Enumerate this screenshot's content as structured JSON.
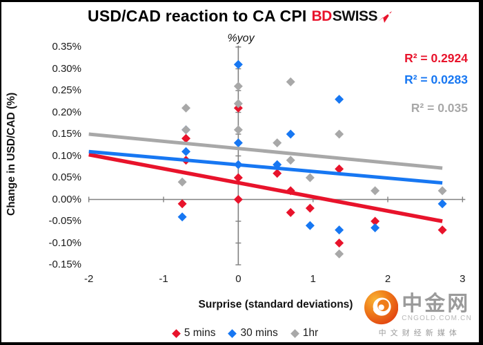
{
  "header": {
    "title": "USD/CAD reaction to CA CPI",
    "logo": {
      "part1": "BD",
      "part2": "SWISS",
      "accent_color": "#e8132b"
    }
  },
  "chart_data": {
    "type": "scatter",
    "title": "USD/CAD reaction to CA CPI",
    "annotation": "%yoy",
    "xlabel": "Surprise (standard deviations)",
    "ylabel": "Change in USD/CAD (%)",
    "xlim": [
      -2,
      3
    ],
    "ylim": [
      -0.15,
      0.35
    ],
    "grid": false,
    "legend_position": "bottom",
    "x_ticks": [
      "-2",
      "-1",
      "0",
      "1",
      "2",
      "3"
    ],
    "x_tick_values": [
      -2,
      -1,
      0,
      1,
      2,
      3
    ],
    "y_tick_labels": [
      "0.35%",
      "0.30%",
      "0.25%",
      "0.20%",
      "0.15%",
      "0.10%",
      "0.05%",
      "0.00%",
      "-0.05%",
      "-0.10%",
      "-0.15%"
    ],
    "y_tick_values": [
      0.35,
      0.3,
      0.25,
      0.2,
      0.15,
      0.1,
      0.05,
      0.0,
      -0.05,
      -0.1,
      -0.15
    ],
    "axis_color": "#808080",
    "series": [
      {
        "key": "5-mins",
        "name": "5 mins",
        "color": "#e8132b",
        "marker": "diamond",
        "r2_text": "R² = 0.2924",
        "points": [
          [
            -0.75,
            -0.01
          ],
          [
            -0.7,
            0.14
          ],
          [
            -0.7,
            0.09
          ],
          [
            0,
            0.21
          ],
          [
            0,
            0.05
          ],
          [
            0,
            0.0
          ],
          [
            0.52,
            0.06
          ],
          [
            0.7,
            0.02
          ],
          [
            0.7,
            -0.03
          ],
          [
            0.96,
            -0.02
          ],
          [
            1.35,
            0.07
          ],
          [
            1.35,
            -0.1
          ],
          [
            1.83,
            -0.05
          ],
          [
            2.73,
            -0.07
          ]
        ],
        "trend": {
          "x1": -2,
          "y1": 0.103,
          "x2": 2.73,
          "y2": -0.05
        },
        "trend_width": 5.5
      },
      {
        "key": "30-mins",
        "name": "30 mins",
        "color": "#1777f2",
        "marker": "diamond",
        "r2_text": "R² = 0.0283",
        "points": [
          [
            -0.75,
            -0.04
          ],
          [
            -0.7,
            0.16
          ],
          [
            -0.7,
            0.11
          ],
          [
            0,
            0.31
          ],
          [
            0,
            0.13
          ],
          [
            0,
            0.08
          ],
          [
            0.52,
            0.08
          ],
          [
            0.7,
            0.15
          ],
          [
            0.96,
            -0.06
          ],
          [
            1.35,
            0.23
          ],
          [
            1.35,
            -0.07
          ],
          [
            1.83,
            -0.065
          ],
          [
            2.73,
            -0.01
          ]
        ],
        "trend": {
          "x1": -2,
          "y1": 0.11,
          "x2": 2.73,
          "y2": 0.038
        },
        "trend_width": 5
      },
      {
        "key": "1hr",
        "name": "1hr",
        "color": "#a8a8a8",
        "marker": "diamond",
        "r2_text": "R² = 0.035",
        "points": [
          [
            -0.75,
            0.04
          ],
          [
            -0.7,
            0.21
          ],
          [
            -0.7,
            0.16
          ],
          [
            0,
            0.26
          ],
          [
            0,
            0.22
          ],
          [
            0,
            0.16
          ],
          [
            0.52,
            0.13
          ],
          [
            0.7,
            0.27
          ],
          [
            0.7,
            0.09
          ],
          [
            0.96,
            0.05
          ],
          [
            1.35,
            0.15
          ],
          [
            1.35,
            -0.125
          ],
          [
            1.83,
            0.02
          ],
          [
            2.73,
            0.02
          ]
        ],
        "trend": {
          "x1": -2,
          "y1": 0.15,
          "x2": 2.73,
          "y2": 0.072
        },
        "trend_width": 5
      }
    ]
  },
  "watermark": {
    "site_name": "中金网",
    "site_domain": "CNGOLD.COM.CN",
    "tagline": "中 文 财 经 新 媒 体",
    "logo_outer_color": "#e03c10",
    "logo_inner_color": "#f7a11a"
  }
}
